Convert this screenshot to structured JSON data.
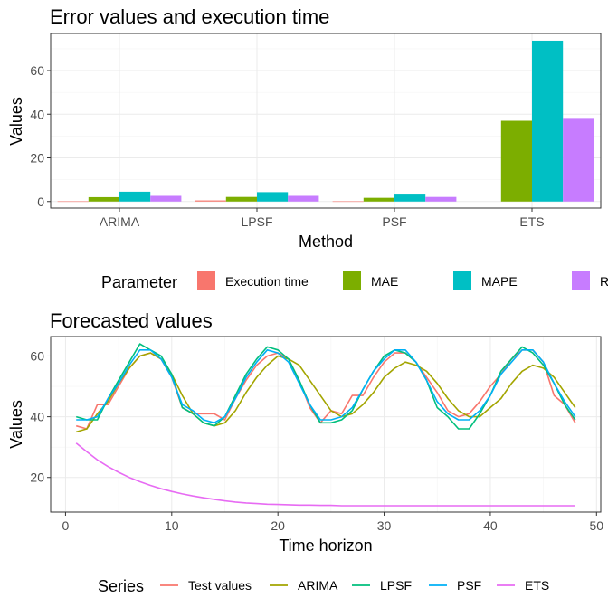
{
  "chart_data": [
    {
      "type": "bar",
      "title": "Error values and execution time",
      "xlabel": "Method",
      "ylabel": "Values",
      "categories": [
        "ARIMA",
        "LPSF",
        "PSF",
        "ETS"
      ],
      "ylim": [
        -3,
        77
      ],
      "yticks": [
        0,
        20,
        40,
        60
      ],
      "grid": true,
      "legend": {
        "title": "Parameter",
        "placement": "bottom"
      },
      "series": [
        {
          "name": "Execution time",
          "color": "#F8766D",
          "values": [
            0.1,
            0.5,
            0.1,
            0.0
          ]
        },
        {
          "name": "MAE",
          "color": "#7CAE00",
          "values": [
            2.0,
            2.1,
            1.7,
            37.0
          ]
        },
        {
          "name": "MAPE",
          "color": "#00BFC4",
          "values": [
            4.5,
            4.3,
            3.6,
            73.7
          ]
        },
        {
          "name": "RMSE",
          "color": "#C77CFF",
          "values": [
            2.6,
            2.6,
            2.1,
            38.3
          ]
        }
      ]
    },
    {
      "type": "line",
      "title": "Forecasted values",
      "xlabel": "Time horizon",
      "ylabel": "Values",
      "xlim": [
        -1.4,
        50.4
      ],
      "ylim": [
        8.6,
        66.4
      ],
      "xticks": [
        0,
        10,
        20,
        30,
        40,
        50
      ],
      "yticks": [
        20,
        40,
        60
      ],
      "grid": true,
      "legend": {
        "title": "Series",
        "placement": "bottom"
      },
      "x": [
        1,
        2,
        3,
        4,
        5,
        6,
        7,
        8,
        9,
        10,
        11,
        12,
        13,
        14,
        15,
        16,
        17,
        18,
        19,
        20,
        21,
        22,
        23,
        24,
        25,
        26,
        27,
        28,
        29,
        30,
        31,
        32,
        33,
        34,
        35,
        36,
        37,
        38,
        39,
        40,
        41,
        42,
        43,
        44,
        45,
        46,
        47,
        48
      ],
      "series": [
        {
          "name": "Test values",
          "color": "#F8766D",
          "values": [
            37,
            36,
            44,
            44,
            50,
            56,
            60,
            61,
            59,
            53,
            43,
            41,
            41,
            41,
            39,
            46,
            52,
            57,
            60,
            61,
            59,
            52,
            43,
            38,
            42,
            41,
            47,
            47,
            53,
            58,
            61,
            61,
            58,
            53,
            48,
            42,
            40,
            41,
            45,
            50,
            54,
            59,
            62,
            62,
            58,
            47,
            44,
            38
          ]
        },
        {
          "name": "ARIMA",
          "color": "#A3A500",
          "values": [
            35,
            36,
            41,
            45,
            51,
            56,
            60,
            61,
            59,
            54,
            47,
            41,
            38,
            37,
            38,
            42,
            48,
            53,
            57,
            60,
            59,
            57,
            52,
            47,
            42,
            40,
            41,
            44,
            48,
            53,
            56,
            58,
            57,
            55,
            51,
            46,
            42,
            40,
            40,
            43,
            46,
            51,
            55,
            57,
            56,
            53,
            48,
            43
          ]
        },
        {
          "name": "LPSF",
          "color": "#00BF7D",
          "values": [
            40,
            39,
            39,
            46,
            52,
            58,
            64,
            62,
            60,
            54,
            43,
            41,
            38,
            37,
            40,
            47,
            54,
            59,
            63,
            62,
            59,
            52,
            44,
            38,
            38,
            39,
            42,
            49,
            55,
            60,
            62,
            61,
            58,
            52,
            43,
            40,
            36,
            36,
            41,
            47,
            55,
            59,
            63,
            61,
            57,
            51,
            44,
            39
          ]
        },
        {
          "name": "PSF",
          "color": "#00B0F6",
          "values": [
            39,
            39,
            40,
            46,
            51,
            57,
            62,
            62,
            59,
            53,
            44,
            42,
            39,
            38,
            40,
            46,
            53,
            58,
            62,
            61,
            58,
            51,
            44,
            39,
            39,
            40,
            43,
            49,
            55,
            59,
            62,
            62,
            58,
            52,
            45,
            41,
            39,
            39,
            42,
            47,
            54,
            58,
            62,
            62,
            58,
            51,
            45,
            40
          ]
        },
        {
          "name": "ETS",
          "color": "#E76BF3",
          "values": [
            31.3,
            28.5,
            25.8,
            23.6,
            21.7,
            20.0,
            18.6,
            17.4,
            16.3,
            15.4,
            14.6,
            13.9,
            13.3,
            12.8,
            12.3,
            11.9,
            11.6,
            11.4,
            11.2,
            11.1,
            11.0,
            10.9,
            10.9,
            10.8,
            10.8,
            10.7,
            10.7,
            10.7,
            10.7,
            10.7,
            10.7,
            10.7,
            10.7,
            10.7,
            10.7,
            10.7,
            10.7,
            10.7,
            10.7,
            10.7,
            10.7,
            10.7,
            10.7,
            10.7,
            10.7,
            10.7,
            10.7,
            10.7
          ]
        }
      ]
    }
  ]
}
